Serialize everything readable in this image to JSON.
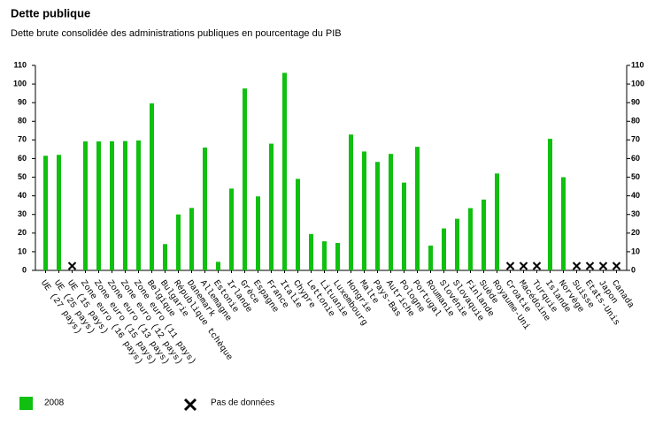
{
  "chart_data": {
    "type": "bar",
    "title": "Dette publique",
    "subtitle": "Dette brute consolidée des administrations publiques en pourcentage du PIB",
    "categories": [
      "UE (27 pays)",
      "UE (25 pays)",
      "UE (15 pays)",
      "Zone euro (16 pays)",
      "Zone euro (15 pays)",
      "Zone euro (13 pays)",
      "Zone euro (12 pays)",
      "Zone euro (11 pays)",
      "Belgique",
      "Bulgarie",
      "République tchèque",
      "Danemark",
      "Allemagne",
      "Estonie",
      "Irlande",
      "Grèce",
      "Espagne",
      "France",
      "Italie",
      "Chypre",
      "Lettonie",
      "Lituanie",
      "Luxembourg",
      "Hongrie",
      "Malte",
      "Pays-Bas",
      "Autriche",
      "Pologne",
      "Portugal",
      "Roumanie",
      "Slovénie",
      "Slovaquie",
      "Finlande",
      "Suède",
      "Royaume-Uni",
      "Croatie",
      "Macédoine",
      "Turquie",
      "Islande",
      "Norvège",
      "Suisse",
      "Etats-Unis",
      "Japon",
      "Canada"
    ],
    "series": [
      {
        "name": "2008",
        "color": "#10c010",
        "values": [
          61.5,
          62,
          null,
          69.2,
          69.2,
          69.3,
          69.4,
          69.7,
          89.6,
          14.1,
          30,
          33.5,
          65.9,
          4.6,
          43.9,
          97.6,
          39.7,
          68,
          106,
          49.1,
          19.5,
          15.6,
          14.7,
          72.9,
          63.8,
          58.2,
          62.5,
          47.1,
          66.3,
          13.3,
          22.5,
          27.7,
          33.4,
          38,
          52,
          null,
          null,
          null,
          70.6,
          50,
          null,
          null,
          null,
          null
        ]
      }
    ],
    "missing_label": "Pas de données",
    "ylim": [
      0,
      110
    ],
    "yticks": [
      0,
      10,
      20,
      30,
      40,
      50,
      60,
      70,
      80,
      90,
      100,
      110
    ]
  }
}
